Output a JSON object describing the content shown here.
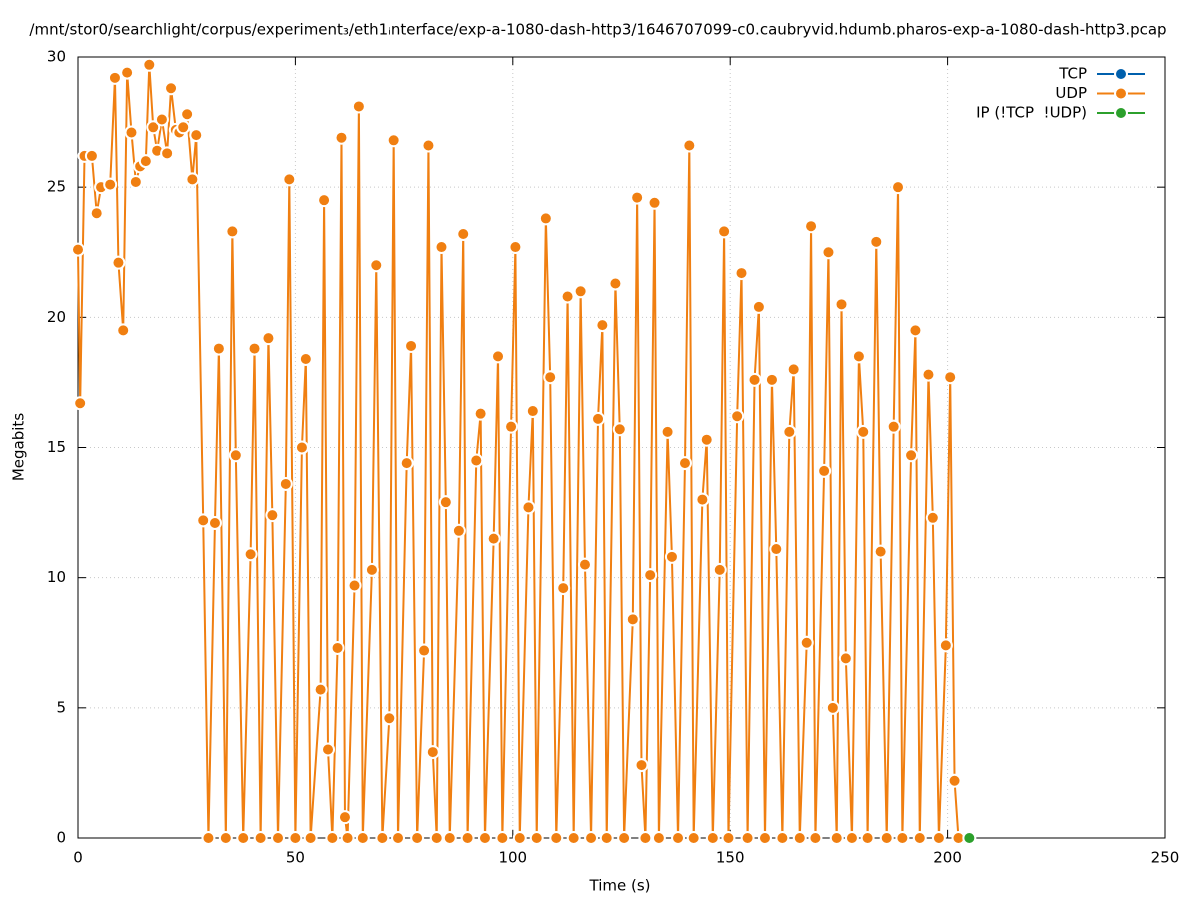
{
  "chart_data": {
    "type": "line",
    "title": "/mnt/stor0/searchlight/corpus/experiment₃/eth1ᵢnterface/exp-a-1080-dash-http3/1646707099-c0.caubryvid.hdumb.pharos-exp-a-1080-dash-http3.pcap",
    "x_label": "Time (s)",
    "y_label": "Megabits",
    "xlim": [
      0,
      250
    ],
    "xticks": [
      0,
      50,
      100,
      150,
      200,
      250
    ],
    "ylim": [
      0,
      30
    ],
    "yticks": [
      0,
      5,
      10,
      15,
      20,
      25,
      30
    ],
    "grid": true,
    "legend": "top-right",
    "series": [
      {
        "name": "TCP",
        "color": "#0060ad",
        "x": [],
        "values": []
      },
      {
        "name": "UDP",
        "color": "#f07f11",
        "x": [
          0,
          0.5,
          1.5,
          3.2,
          4.3,
          5.3,
          7.4,
          8.5,
          9.3,
          10.4,
          11.3,
          12.3,
          13.3,
          14.3,
          15.6,
          16.4,
          17.3,
          18.2,
          19.3,
          20.5,
          21.4,
          22.5,
          23.3,
          24.2,
          25.1,
          26.3,
          27.2,
          28.8,
          30,
          31.5,
          32.4,
          34,
          35.5,
          36.3,
          38,
          39.7,
          40.6,
          42,
          43.8,
          44.7,
          46,
          47.8,
          48.6,
          50,
          51.5,
          52.4,
          53.5,
          55.8,
          56.6,
          57.5,
          58.5,
          59.7,
          60.6,
          61.4,
          62,
          63.6,
          64.6,
          65.5,
          67.6,
          68.6,
          70,
          71.6,
          72.6,
          73.6,
          75.6,
          76.6,
          78,
          79.6,
          80.6,
          81.6,
          82.5,
          83.6,
          84.6,
          85.5,
          87.6,
          88.6,
          89.6,
          91.6,
          92.6,
          93.6,
          95.6,
          96.6,
          97.6,
          99.6,
          100.6,
          101.6,
          103.6,
          104.6,
          105.5,
          107.6,
          108.6,
          110,
          111.6,
          112.6,
          114,
          115.6,
          116.6,
          118,
          119.6,
          120.6,
          121.6,
          123.6,
          124.6,
          125.6,
          127.6,
          128.6,
          129.6,
          130.5,
          131.6,
          132.6,
          133.6,
          135.6,
          136.6,
          138,
          139.6,
          140.6,
          141.6,
          143.6,
          144.6,
          146,
          147.6,
          148.6,
          149.6,
          151.6,
          152.6,
          154,
          155.6,
          156.6,
          158,
          159.6,
          160.6,
          162,
          163.6,
          164.6,
          166,
          167.6,
          168.6,
          169.6,
          171.6,
          172.6,
          173.6,
          174.5,
          175.6,
          176.6,
          178,
          179.6,
          180.6,
          181.6,
          183.6,
          184.6,
          186,
          187.6,
          188.6,
          189.6,
          191.6,
          192.6,
          193.6,
          195.6,
          196.6,
          198,
          199.6,
          200.6,
          201.6,
          202.5
        ],
        "values": [
          22.6,
          16.7,
          26.2,
          26.2,
          24.0,
          25.0,
          25.1,
          29.2,
          22.1,
          19.5,
          29.4,
          27.1,
          25.2,
          25.8,
          26.0,
          29.7,
          27.3,
          26.4,
          27.6,
          26.3,
          28.8,
          27.2,
          27.1,
          27.3,
          27.8,
          25.3,
          27.0,
          12.2,
          0,
          12.1,
          18.8,
          0,
          23.3,
          14.7,
          0,
          10.9,
          18.8,
          0,
          19.2,
          12.4,
          0,
          13.6,
          25.3,
          0,
          15.0,
          18.4,
          0,
          5.7,
          24.5,
          3.4,
          0,
          7.3,
          26.9,
          0.8,
          0,
          9.7,
          28.1,
          0,
          10.3,
          22.0,
          0,
          4.6,
          26.8,
          0,
          14.4,
          18.9,
          0,
          7.2,
          26.6,
          3.3,
          0,
          22.7,
          12.9,
          0,
          11.8,
          23.2,
          0,
          14.5,
          16.3,
          0,
          11.5,
          18.5,
          0,
          15.8,
          22.7,
          0,
          12.7,
          16.4,
          0,
          23.8,
          17.7,
          0,
          9.6,
          20.8,
          0,
          21.0,
          10.5,
          0,
          16.1,
          19.7,
          0,
          21.3,
          15.7,
          0,
          8.4,
          24.6,
          2.8,
          0,
          10.1,
          24.4,
          0,
          15.6,
          10.8,
          0,
          14.4,
          26.6,
          0,
          13.0,
          15.3,
          0,
          10.3,
          23.3,
          0,
          16.2,
          21.7,
          0,
          17.6,
          20.4,
          0,
          17.6,
          11.1,
          0,
          15.6,
          18.0,
          0,
          7.5,
          23.5,
          0,
          14.1,
          22.5,
          5.0,
          0,
          20.5,
          6.9,
          0,
          18.5,
          15.6,
          0,
          22.9,
          11.0,
          0,
          15.8,
          25.0,
          0,
          14.7,
          19.5,
          0,
          17.8,
          12.3,
          0,
          7.4,
          17.7,
          2.2,
          0
        ]
      },
      {
        "name": "IP (!TCP  !UDP)",
        "color": "#2ca02c",
        "x": [
          205
        ],
        "values": [
          0
        ]
      }
    ]
  }
}
